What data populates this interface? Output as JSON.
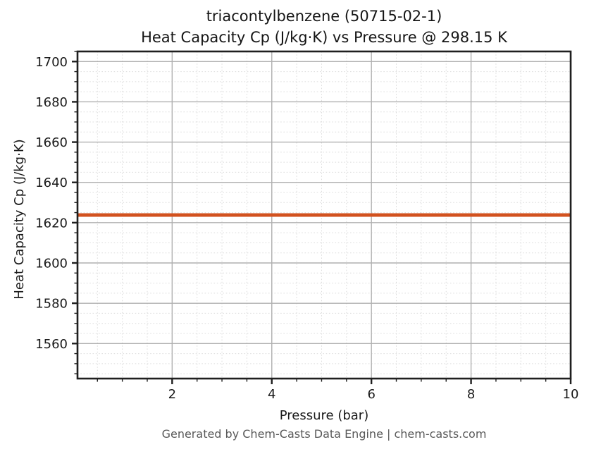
{
  "header": {
    "title_line1": "triacontylbenzene (50715-02-1)",
    "title_line2": "Heat Capacity Cp (J/kg·K) vs Pressure @ 298.15 K"
  },
  "footer": {
    "text": "Generated by Chem-Casts Data Engine | chem-casts.com"
  },
  "chart_data": {
    "type": "line",
    "title": "triacontylbenzene (50715-02-1)",
    "subtitle": "Heat Capacity Cp (J/kg·K) vs Pressure @ 298.15 K",
    "xlabel": "Pressure (bar)",
    "ylabel": "Heat Capacity Cp (J/kg·K)",
    "xlim": [
      0.1,
      10.0
    ],
    "ylim": [
      1542.6,
      1705.0
    ],
    "x_major_ticks": [
      2,
      4,
      6,
      8,
      10
    ],
    "x_minor_step": 0.5,
    "y_major_ticks": [
      1560,
      1580,
      1600,
      1620,
      1640,
      1660,
      1680,
      1700
    ],
    "y_minor_step": 5,
    "grid": {
      "major": "solid",
      "minor": "dashed"
    },
    "legend": null,
    "series": [
      {
        "name": "Heat Capacity Cp",
        "color": "#d2521f",
        "line_width": 5,
        "x": [
          0.1,
          1.0,
          2.0,
          3.0,
          4.0,
          5.0,
          6.0,
          7.0,
          8.0,
          9.0,
          10.0
        ],
        "y": [
          1623.8,
          1623.8,
          1623.8,
          1623.8,
          1623.8,
          1623.8,
          1623.8,
          1623.8,
          1623.8,
          1623.8,
          1623.8
        ]
      }
    ]
  },
  "colors": {
    "background": "#ffffff",
    "text": "#1a1a1a",
    "spine": "#1f1f1f",
    "grid_major": "#b0b0b0",
    "grid_minor": "#dcdcdc",
    "series_line": "#d2521f",
    "footer_text": "#595959"
  }
}
